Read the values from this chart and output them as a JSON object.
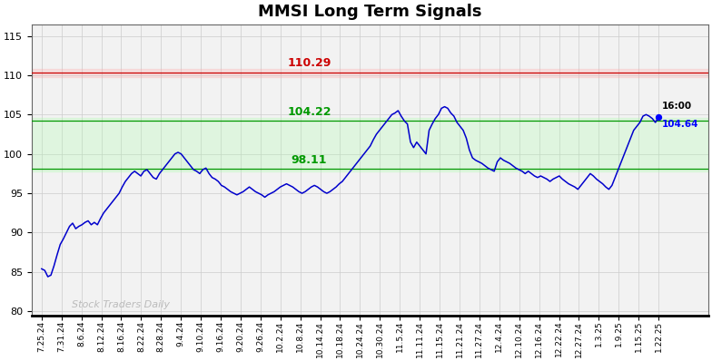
{
  "title": "MMSI Long Term Signals",
  "background_color": "#ffffff",
  "plot_bg_color": "#f2f2f2",
  "ylim": [
    79.5,
    116.5
  ],
  "yticks": [
    80,
    85,
    90,
    95,
    100,
    105,
    110,
    115
  ],
  "red_line": 110.29,
  "red_line_label": "110.29",
  "red_line_color": "#cc0000",
  "red_band_alpha": 0.25,
  "red_band_color": "#ffaaaa",
  "green_line_upper": 104.22,
  "green_line_upper_label": "104.22",
  "green_line_lower": 98.11,
  "green_line_lower_label": "98.11",
  "green_line_color": "#009900",
  "green_band_color": "#aaffaa",
  "green_band_alpha": 0.25,
  "last_label_time": "16:00",
  "last_label_price": "104.64",
  "last_label_price_color": "#0000ff",
  "last_label_time_color": "#000000",
  "watermark": "Stock Traders Daily",
  "watermark_color": "#bbbbbb",
  "line_color": "#0000cc",
  "dot_color": "#0000ff",
  "xtick_labels": [
    "7.25.24",
    "7.31.24",
    "8.6.24",
    "8.12.24",
    "8.16.24",
    "8.22.24",
    "8.28.24",
    "9.4.24",
    "9.10.24",
    "9.16.24",
    "9.20.24",
    "9.26.24",
    "10.2.24",
    "10.8.24",
    "10.14.24",
    "10.18.24",
    "10.24.24",
    "10.30.24",
    "11.5.24",
    "11.11.24",
    "11.15.24",
    "11.21.24",
    "11.27.24",
    "12.4.24",
    "12.10.24",
    "12.16.24",
    "12.22.24",
    "12.27.24",
    "1.3.25",
    "1.9.25",
    "1.15.25",
    "1.22.25"
  ],
  "prices": [
    85.4,
    85.2,
    84.4,
    84.6,
    85.8,
    87.2,
    88.5,
    89.2,
    90.0,
    90.8,
    91.2,
    90.5,
    90.8,
    91.0,
    91.3,
    91.5,
    91.0,
    91.3,
    91.0,
    91.8,
    92.5,
    93.0,
    93.5,
    94.0,
    94.5,
    95.0,
    95.8,
    96.5,
    97.0,
    97.5,
    97.8,
    97.5,
    97.2,
    97.8,
    98.0,
    97.5,
    97.0,
    96.8,
    97.5,
    98.0,
    98.5,
    99.0,
    99.5,
    100.0,
    100.2,
    100.0,
    99.5,
    99.0,
    98.5,
    98.0,
    97.8,
    97.5,
    98.0,
    98.2,
    97.5,
    97.0,
    96.8,
    96.5,
    96.0,
    95.8,
    95.5,
    95.2,
    95.0,
    94.8,
    95.0,
    95.2,
    95.5,
    95.8,
    95.5,
    95.2,
    95.0,
    94.8,
    94.5,
    94.8,
    95.0,
    95.2,
    95.5,
    95.8,
    96.0,
    96.2,
    96.0,
    95.8,
    95.5,
    95.2,
    95.0,
    95.2,
    95.5,
    95.8,
    96.0,
    95.8,
    95.5,
    95.2,
    95.0,
    95.2,
    95.5,
    95.8,
    96.2,
    96.5,
    97.0,
    97.5,
    98.0,
    98.5,
    99.0,
    99.5,
    100.0,
    100.5,
    101.0,
    101.8,
    102.5,
    103.0,
    103.5,
    104.0,
    104.5,
    105.0,
    105.2,
    105.5,
    104.8,
    104.2,
    103.8,
    101.5,
    100.8,
    101.5,
    101.0,
    100.5,
    100.0,
    103.0,
    103.8,
    104.5,
    105.0,
    105.8,
    106.0,
    105.8,
    105.2,
    104.8,
    104.0,
    103.5,
    103.0,
    102.0,
    100.5,
    99.5,
    99.2,
    99.0,
    98.8,
    98.5,
    98.2,
    98.0,
    97.8,
    99.0,
    99.5,
    99.2,
    99.0,
    98.8,
    98.5,
    98.2,
    98.0,
    97.8,
    97.5,
    97.8,
    97.5,
    97.2,
    97.0,
    97.2,
    97.0,
    96.8,
    96.5,
    96.8,
    97.0,
    97.2,
    96.8,
    96.5,
    96.2,
    96.0,
    95.8,
    95.5,
    96.0,
    96.5,
    97.0,
    97.5,
    97.2,
    96.8,
    96.5,
    96.2,
    95.8,
    95.5,
    96.0,
    97.0,
    98.0,
    99.0,
    100.0,
    101.0,
    102.0,
    103.0,
    103.5,
    104.0,
    104.8,
    105.0,
    104.8,
    104.5,
    104.0,
    104.64
  ]
}
